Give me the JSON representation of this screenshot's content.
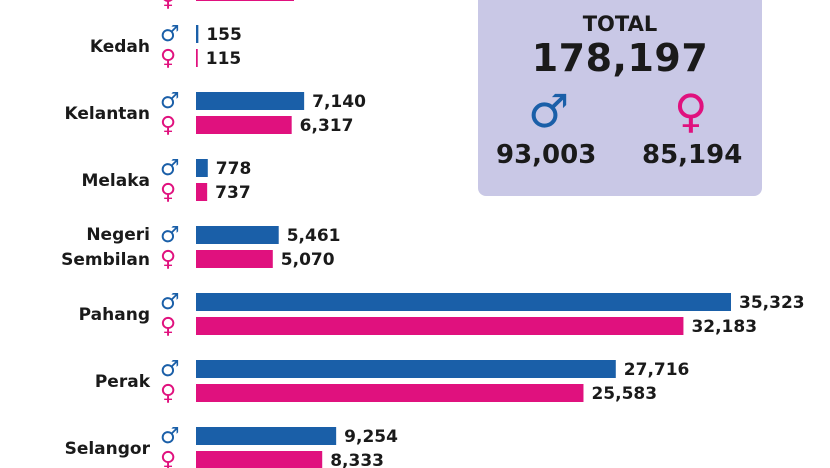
{
  "colors": {
    "male": "#1a5fa8",
    "female": "#e0117e",
    "total_box": "#c9c8e6"
  },
  "symbols": {
    "male": "♂",
    "female": "♀"
  },
  "total": {
    "label": "TOTAL",
    "value": "178,197",
    "male": "93,003",
    "female": "85,194"
  },
  "chart_data": {
    "type": "bar",
    "orientation": "horizontal",
    "categories": [
      "Kedah",
      "Kelantan",
      "Melaka",
      "Negeri Sembilan",
      "Pahang",
      "Perak",
      "Selangor"
    ],
    "category_lines": [
      [
        "Kedah"
      ],
      [
        "Kelantan"
      ],
      [
        "Melaka"
      ],
      [
        "Negeri",
        "Sembilan"
      ],
      [
        "Pahang"
      ],
      [
        "Perak"
      ],
      [
        "Selangor"
      ]
    ],
    "series": [
      {
        "key": "male",
        "values": [
          155,
          7140,
          778,
          5461,
          35323,
          27716,
          9254
        ],
        "labels": [
          "155",
          "7,140",
          "778",
          "5,461",
          "35,323",
          "27,716",
          "9,254"
        ]
      },
      {
        "key": "female",
        "values": [
          115,
          6317,
          737,
          5070,
          32183,
          25583,
          8333
        ],
        "labels": [
          "115",
          "6,317",
          "737",
          "5,070",
          "32,183",
          "25,583",
          "8,333"
        ]
      }
    ],
    "xlim": [
      0,
      35323
    ],
    "grid": false,
    "legend": "none"
  }
}
